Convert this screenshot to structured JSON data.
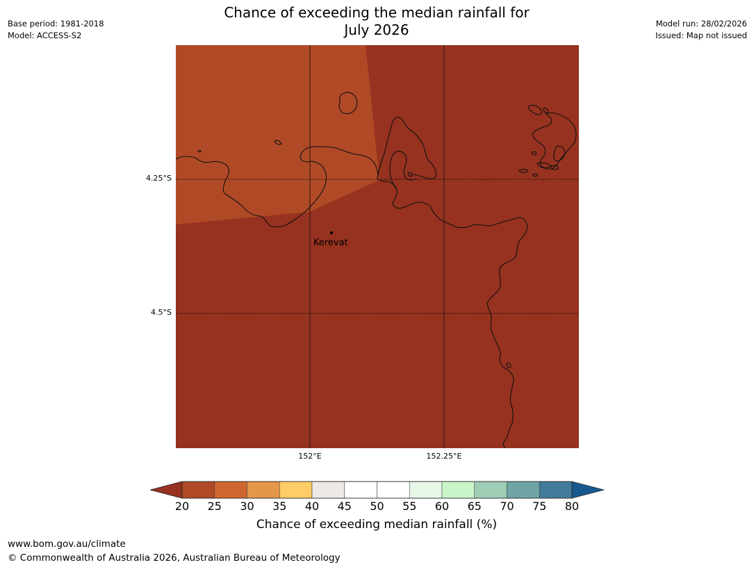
{
  "title": {
    "line1": "Chance of exceeding the median rainfall for",
    "line2": "July 2026"
  },
  "meta_left": {
    "base_period": "Base period: 1981-2018",
    "model": "Model: ACCESS-S2"
  },
  "meta_right": {
    "model_run": "Model run: 28/02/2026",
    "issued": "Issued: Map not issued"
  },
  "map": {
    "latitudes": [
      {
        "label": "4.25°S",
        "value": -4.25
      },
      {
        "label": "4.5°S",
        "value": -4.5
      }
    ],
    "longitudes": [
      {
        "label": "152°E",
        "value": 152.0
      },
      {
        "label": "152.25°E",
        "value": 152.25
      }
    ],
    "lon_range": [
      151.75,
      152.5
    ],
    "lat_range": [
      -4.75,
      -4.0
    ],
    "regions": [
      {
        "name": "probability-20-25",
        "color": "#B04A26"
      },
      {
        "name": "probability-below-20",
        "color": "#96321F"
      }
    ],
    "town": {
      "name": "Kerevat",
      "lon": 152.04,
      "lat": -4.352
    }
  },
  "colorbar": {
    "ticks": [
      "20",
      "25",
      "30",
      "35",
      "40",
      "45",
      "50",
      "55",
      "60",
      "65",
      "70",
      "75",
      "80"
    ],
    "colors": [
      "#B04A26",
      "#CE672F",
      "#E4964B",
      "#FFCC66",
      "#EDEAE5",
      "#FFFFFF",
      "#FFFFFF",
      "#E8F6E8",
      "#C9F5C9",
      "#9ECEB6",
      "#6FA5A5",
      "#427B99"
    ],
    "extend_low_color": "#96321F",
    "extend_high_color": "#185A90",
    "label": "Chance of exceeding median rainfall (%)"
  },
  "footer": {
    "url": "www.bom.gov.au/climate",
    "copyright": "© Commonwealth of Australia 2026, Australian Bureau of Meteorology"
  }
}
